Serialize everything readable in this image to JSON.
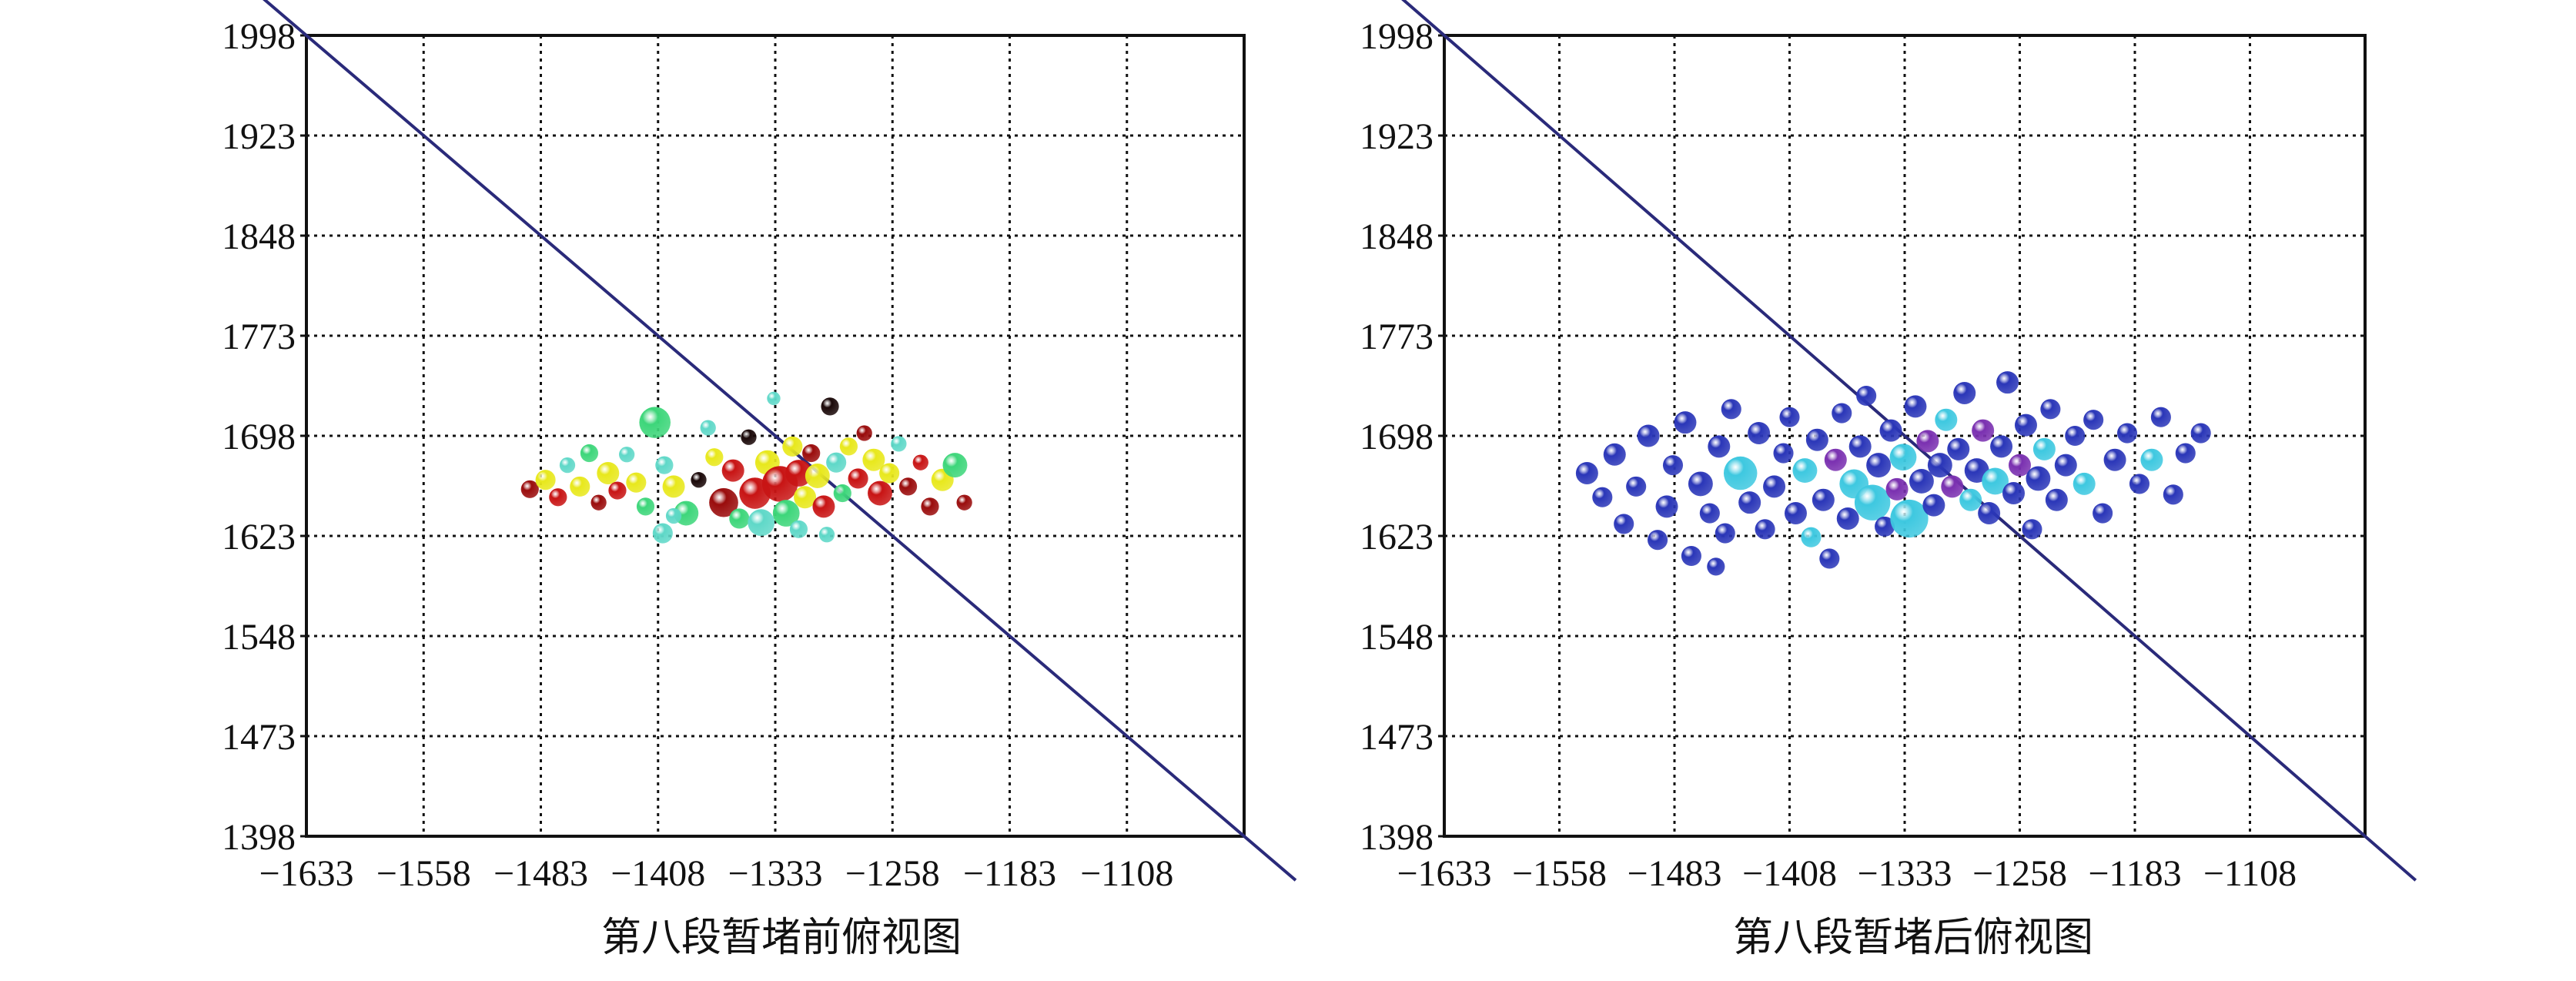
{
  "chart_data": [
    {
      "type": "scatter",
      "title": "第八段暂堵前俯视图",
      "xlabel": "",
      "ylabel": "",
      "xlim": [
        -1633,
        -1033
      ],
      "ylim": [
        1398,
        1998
      ],
      "xticks": [
        "-1633",
        "-1558",
        "-1483",
        "-1408",
        "-1333",
        "-1258",
        "-1183",
        "-1108"
      ],
      "yticks": [
        "1398",
        "1473",
        "1548",
        "1623",
        "1698",
        "1773",
        "1848",
        "1923",
        "1998"
      ],
      "grid": true,
      "line": {
        "x": [
          -1633,
          -1033
        ],
        "y": [
          1998,
          1398
        ],
        "color": "#2a2a7a"
      },
      "colors": {
        "green": "#3dd67a",
        "cyan": "#5fd8c8",
        "yellow": "#e8e81c",
        "red": "#c81414",
        "darkred": "#9a0c0c",
        "black": "#1a0808"
      },
      "points": [
        {
          "x": -1490,
          "y": 1658,
          "c": "darkred",
          "r": 8
        },
        {
          "x": -1480,
          "y": 1665,
          "c": "yellow",
          "r": 9
        },
        {
          "x": -1472,
          "y": 1652,
          "c": "red",
          "r": 8
        },
        {
          "x": -1466,
          "y": 1676,
          "c": "cyan",
          "r": 7
        },
        {
          "x": -1458,
          "y": 1660,
          "c": "yellow",
          "r": 9
        },
        {
          "x": -1452,
          "y": 1685,
          "c": "green",
          "r": 8
        },
        {
          "x": -1446,
          "y": 1648,
          "c": "darkred",
          "r": 7
        },
        {
          "x": -1440,
          "y": 1670,
          "c": "yellow",
          "r": 10
        },
        {
          "x": -1434,
          "y": 1657,
          "c": "red",
          "r": 8
        },
        {
          "x": -1428,
          "y": 1684,
          "c": "cyan",
          "r": 7
        },
        {
          "x": -1422,
          "y": 1663,
          "c": "yellow",
          "r": 9
        },
        {
          "x": -1416,
          "y": 1645,
          "c": "green",
          "r": 8
        },
        {
          "x": -1410,
          "y": 1708,
          "c": "green",
          "r": 14
        },
        {
          "x": -1404,
          "y": 1676,
          "c": "cyan",
          "r": 8
        },
        {
          "x": -1398,
          "y": 1660,
          "c": "yellow",
          "r": 10
        },
        {
          "x": -1405,
          "y": 1625,
          "c": "cyan",
          "r": 9
        },
        {
          "x": -1390,
          "y": 1640,
          "c": "green",
          "r": 11
        },
        {
          "x": -1382,
          "y": 1665,
          "c": "black",
          "r": 7
        },
        {
          "x": -1376,
          "y": 1704,
          "c": "cyan",
          "r": 7
        },
        {
          "x": -1372,
          "y": 1682,
          "c": "yellow",
          "r": 8
        },
        {
          "x": -1366,
          "y": 1648,
          "c": "darkred",
          "r": 13
        },
        {
          "x": -1360,
          "y": 1672,
          "c": "red",
          "r": 10
        },
        {
          "x": -1356,
          "y": 1636,
          "c": "green",
          "r": 9
        },
        {
          "x": -1350,
          "y": 1697,
          "c": "black",
          "r": 7
        },
        {
          "x": -1346,
          "y": 1655,
          "c": "red",
          "r": 14
        },
        {
          "x": -1342,
          "y": 1633,
          "c": "cyan",
          "r": 12
        },
        {
          "x": -1338,
          "y": 1678,
          "c": "yellow",
          "r": 11
        },
        {
          "x": -1334,
          "y": 1726,
          "c": "cyan",
          "r": 6
        },
        {
          "x": -1330,
          "y": 1662,
          "c": "red",
          "r": 16
        },
        {
          "x": -1326,
          "y": 1640,
          "c": "green",
          "r": 12
        },
        {
          "x": -1322,
          "y": 1690,
          "c": "yellow",
          "r": 9
        },
        {
          "x": -1318,
          "y": 1670,
          "c": "red",
          "r": 12
        },
        {
          "x": -1314,
          "y": 1652,
          "c": "yellow",
          "r": 10
        },
        {
          "x": -1310,
          "y": 1685,
          "c": "darkred",
          "r": 8
        },
        {
          "x": -1306,
          "y": 1668,
          "c": "yellow",
          "r": 11
        },
        {
          "x": -1302,
          "y": 1645,
          "c": "red",
          "r": 10
        },
        {
          "x": -1298,
          "y": 1720,
          "c": "black",
          "r": 8
        },
        {
          "x": -1294,
          "y": 1678,
          "c": "cyan",
          "r": 9
        },
        {
          "x": -1290,
          "y": 1655,
          "c": "green",
          "r": 8
        },
        {
          "x": -1286,
          "y": 1690,
          "c": "yellow",
          "r": 8
        },
        {
          "x": -1280,
          "y": 1666,
          "c": "red",
          "r": 9
        },
        {
          "x": -1276,
          "y": 1700,
          "c": "darkred",
          "r": 7
        },
        {
          "x": -1270,
          "y": 1680,
          "c": "yellow",
          "r": 10
        },
        {
          "x": -1266,
          "y": 1655,
          "c": "red",
          "r": 11
        },
        {
          "x": -1260,
          "y": 1670,
          "c": "yellow",
          "r": 9
        },
        {
          "x": -1254,
          "y": 1692,
          "c": "cyan",
          "r": 7
        },
        {
          "x": -1248,
          "y": 1660,
          "c": "darkred",
          "r": 8
        },
        {
          "x": -1240,
          "y": 1678,
          "c": "red",
          "r": 7
        },
        {
          "x": -1234,
          "y": 1645,
          "c": "darkred",
          "r": 8
        },
        {
          "x": -1226,
          "y": 1665,
          "c": "yellow",
          "r": 10
        },
        {
          "x": -1218,
          "y": 1676,
          "c": "green",
          "r": 11
        },
        {
          "x": -1212,
          "y": 1648,
          "c": "darkred",
          "r": 7
        },
        {
          "x": -1398,
          "y": 1638,
          "c": "cyan",
          "r": 7
        },
        {
          "x": -1318,
          "y": 1628,
          "c": "cyan",
          "r": 8
        },
        {
          "x": -1300,
          "y": 1624,
          "c": "cyan",
          "r": 7
        }
      ]
    },
    {
      "type": "scatter",
      "title": "第八段暂堵后俯视图",
      "xlabel": "",
      "ylabel": "",
      "xlim": [
        -1633,
        -1033
      ],
      "ylim": [
        1398,
        1998
      ],
      "xticks": [
        "-1633",
        "-1558",
        "-1483",
        "-1408",
        "-1333",
        "-1258",
        "-1183",
        "-1108"
      ],
      "yticks": [
        "1398",
        "1473",
        "1548",
        "1623",
        "1698",
        "1773",
        "1848",
        "1923",
        "1998"
      ],
      "grid": true,
      "line": {
        "x": [
          -1633,
          -1033
        ],
        "y": [
          1998,
          1398
        ],
        "color": "#2a2a7a"
      },
      "colors": {
        "blue": "#2a36b8",
        "cyan": "#3ec8e0",
        "purple": "#7a30b0"
      },
      "points": [
        {
          "x": -1540,
          "y": 1670,
          "c": "blue",
          "r": 10
        },
        {
          "x": -1530,
          "y": 1652,
          "c": "blue",
          "r": 9
        },
        {
          "x": -1522,
          "y": 1684,
          "c": "blue",
          "r": 10
        },
        {
          "x": -1516,
          "y": 1632,
          "c": "blue",
          "r": 9
        },
        {
          "x": -1508,
          "y": 1660,
          "c": "blue",
          "r": 9
        },
        {
          "x": -1500,
          "y": 1698,
          "c": "blue",
          "r": 10
        },
        {
          "x": -1494,
          "y": 1620,
          "c": "blue",
          "r": 9
        },
        {
          "x": -1488,
          "y": 1645,
          "c": "blue",
          "r": 10
        },
        {
          "x": -1484,
          "y": 1676,
          "c": "blue",
          "r": 9
        },
        {
          "x": -1476,
          "y": 1708,
          "c": "blue",
          "r": 10
        },
        {
          "x": -1472,
          "y": 1608,
          "c": "blue",
          "r": 9
        },
        {
          "x": -1466,
          "y": 1662,
          "c": "blue",
          "r": 11
        },
        {
          "x": -1460,
          "y": 1640,
          "c": "blue",
          "r": 9
        },
        {
          "x": -1454,
          "y": 1690,
          "c": "blue",
          "r": 10
        },
        {
          "x": -1450,
          "y": 1625,
          "c": "blue",
          "r": 9
        },
        {
          "x": -1446,
          "y": 1718,
          "c": "blue",
          "r": 9
        },
        {
          "x": -1440,
          "y": 1670,
          "c": "cyan",
          "r": 15
        },
        {
          "x": -1434,
          "y": 1648,
          "c": "blue",
          "r": 10
        },
        {
          "x": -1428,
          "y": 1700,
          "c": "blue",
          "r": 10
        },
        {
          "x": -1424,
          "y": 1628,
          "c": "blue",
          "r": 9
        },
        {
          "x": -1418,
          "y": 1660,
          "c": "blue",
          "r": 10
        },
        {
          "x": -1412,
          "y": 1685,
          "c": "blue",
          "r": 9
        },
        {
          "x": -1408,
          "y": 1712,
          "c": "blue",
          "r": 9
        },
        {
          "x": -1404,
          "y": 1640,
          "c": "blue",
          "r": 10
        },
        {
          "x": -1398,
          "y": 1672,
          "c": "cyan",
          "r": 11
        },
        {
          "x": -1394,
          "y": 1622,
          "c": "cyan",
          "r": 9
        },
        {
          "x": -1390,
          "y": 1695,
          "c": "blue",
          "r": 10
        },
        {
          "x": -1386,
          "y": 1650,
          "c": "blue",
          "r": 10
        },
        {
          "x": -1382,
          "y": 1606,
          "c": "blue",
          "r": 9
        },
        {
          "x": -1378,
          "y": 1680,
          "c": "purple",
          "r": 10
        },
        {
          "x": -1374,
          "y": 1715,
          "c": "blue",
          "r": 9
        },
        {
          "x": -1370,
          "y": 1636,
          "c": "blue",
          "r": 10
        },
        {
          "x": -1366,
          "y": 1662,
          "c": "cyan",
          "r": 13
        },
        {
          "x": -1362,
          "y": 1690,
          "c": "blue",
          "r": 10
        },
        {
          "x": -1358,
          "y": 1728,
          "c": "blue",
          "r": 9
        },
        {
          "x": -1354,
          "y": 1648,
          "c": "cyan",
          "r": 16
        },
        {
          "x": -1350,
          "y": 1676,
          "c": "blue",
          "r": 11
        },
        {
          "x": -1346,
          "y": 1630,
          "c": "blue",
          "r": 9
        },
        {
          "x": -1342,
          "y": 1702,
          "c": "blue",
          "r": 10
        },
        {
          "x": -1338,
          "y": 1658,
          "c": "purple",
          "r": 10
        },
        {
          "x": -1334,
          "y": 1682,
          "c": "cyan",
          "r": 12
        },
        {
          "x": -1330,
          "y": 1636,
          "c": "cyan",
          "r": 17
        },
        {
          "x": -1326,
          "y": 1720,
          "c": "blue",
          "r": 10
        },
        {
          "x": -1322,
          "y": 1664,
          "c": "blue",
          "r": 11
        },
        {
          "x": -1318,
          "y": 1694,
          "c": "purple",
          "r": 10
        },
        {
          "x": -1314,
          "y": 1646,
          "c": "blue",
          "r": 10
        },
        {
          "x": -1310,
          "y": 1676,
          "c": "blue",
          "r": 11
        },
        {
          "x": -1306,
          "y": 1710,
          "c": "cyan",
          "r": 10
        },
        {
          "x": -1302,
          "y": 1660,
          "c": "purple",
          "r": 10
        },
        {
          "x": -1298,
          "y": 1688,
          "c": "blue",
          "r": 10
        },
        {
          "x": -1294,
          "y": 1730,
          "c": "blue",
          "r": 10
        },
        {
          "x": -1290,
          "y": 1650,
          "c": "cyan",
          "r": 10
        },
        {
          "x": -1286,
          "y": 1672,
          "c": "blue",
          "r": 11
        },
        {
          "x": -1282,
          "y": 1702,
          "c": "purple",
          "r": 10
        },
        {
          "x": -1278,
          "y": 1640,
          "c": "blue",
          "r": 10
        },
        {
          "x": -1274,
          "y": 1664,
          "c": "cyan",
          "r": 12
        },
        {
          "x": -1270,
          "y": 1690,
          "c": "blue",
          "r": 10
        },
        {
          "x": -1266,
          "y": 1738,
          "c": "blue",
          "r": 10
        },
        {
          "x": -1262,
          "y": 1655,
          "c": "blue",
          "r": 10
        },
        {
          "x": -1258,
          "y": 1676,
          "c": "purple",
          "r": 10
        },
        {
          "x": -1254,
          "y": 1706,
          "c": "blue",
          "r": 10
        },
        {
          "x": -1250,
          "y": 1628,
          "c": "blue",
          "r": 9
        },
        {
          "x": -1246,
          "y": 1666,
          "c": "blue",
          "r": 11
        },
        {
          "x": -1242,
          "y": 1688,
          "c": "cyan",
          "r": 10
        },
        {
          "x": -1238,
          "y": 1718,
          "c": "blue",
          "r": 9
        },
        {
          "x": -1234,
          "y": 1650,
          "c": "blue",
          "r": 10
        },
        {
          "x": -1228,
          "y": 1676,
          "c": "blue",
          "r": 10
        },
        {
          "x": -1222,
          "y": 1698,
          "c": "blue",
          "r": 9
        },
        {
          "x": -1216,
          "y": 1662,
          "c": "cyan",
          "r": 10
        },
        {
          "x": -1210,
          "y": 1710,
          "c": "blue",
          "r": 9
        },
        {
          "x": -1204,
          "y": 1640,
          "c": "blue",
          "r": 9
        },
        {
          "x": -1196,
          "y": 1680,
          "c": "blue",
          "r": 10
        },
        {
          "x": -1188,
          "y": 1700,
          "c": "blue",
          "r": 9
        },
        {
          "x": -1180,
          "y": 1662,
          "c": "blue",
          "r": 9
        },
        {
          "x": -1172,
          "y": 1680,
          "c": "cyan",
          "r": 10
        },
        {
          "x": -1166,
          "y": 1712,
          "c": "blue",
          "r": 9
        },
        {
          "x": -1158,
          "y": 1654,
          "c": "blue",
          "r": 9
        },
        {
          "x": -1150,
          "y": 1685,
          "c": "blue",
          "r": 9
        },
        {
          "x": -1140,
          "y": 1700,
          "c": "blue",
          "r": 9
        },
        {
          "x": -1456,
          "y": 1600,
          "c": "blue",
          "r": 8
        }
      ]
    }
  ]
}
